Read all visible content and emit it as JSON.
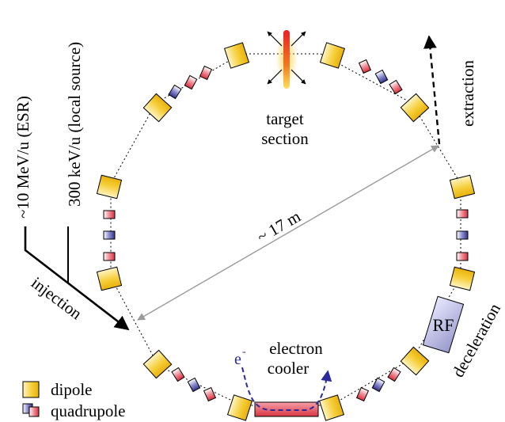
{
  "labels": {
    "target": "target",
    "section": "section",
    "extraction": "extraction",
    "esr_energy": "~10 MeV/u (ESR)",
    "local_energy": "300 keV/u (local source)",
    "diameter": "~ 17 m",
    "injection": "injection",
    "electron": "electron",
    "cooler": "cooler",
    "electron_symbol": "e",
    "electron_charge": "-",
    "rf": "RF",
    "deceleration": "deceleration"
  },
  "legend": {
    "dipole": "dipole",
    "quadrupole": "quadrupole"
  },
  "colors": {
    "dipole_fill": "#f3c21d",
    "dipole_light": "#fff4c4",
    "quad_red": "#e0404e",
    "quad_blue": "#3c3c9a",
    "electron_beam": "#2a2a9a",
    "diameter_arrow": "#9a9a9a",
    "rf_fill": "#b9b9e0",
    "cooler_fill": "#e8545e"
  }
}
